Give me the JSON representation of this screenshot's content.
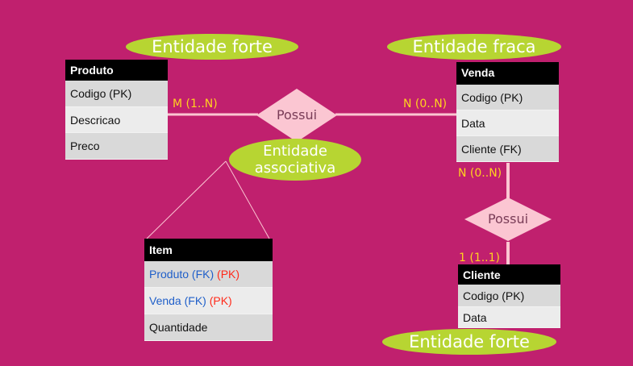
{
  "produto": {
    "title": "Produto",
    "rows": [
      "Codigo (PK)",
      "Descricao",
      "Preco"
    ]
  },
  "venda": {
    "title": "Venda",
    "rows": [
      "Codigo (PK)",
      "Data",
      "Cliente (FK)"
    ]
  },
  "item": {
    "title": "Item",
    "row1_field": "Produto (FK)",
    "row1_key": " (PK)",
    "row2_field": "Venda (FK)",
    "row2_key": " (PK)",
    "row3": "Quantidade"
  },
  "cliente": {
    "title": "Cliente",
    "rows": [
      "Codigo (PK)",
      "Data"
    ]
  },
  "labels": {
    "produto_type": "Entidade forte",
    "venda_type": "Entidade fraca",
    "associativa_line1": "Entidade",
    "associativa_line2": "associativa",
    "cliente_type": "Entidade forte"
  },
  "relationships": {
    "top": "Possui",
    "right": "Possui"
  },
  "cardinalities": {
    "produto_side": "M (1..N)",
    "venda_side_top": "N (0..N)",
    "venda_side_bottom": "N (0..N)",
    "cliente_side": "1 (1..1)"
  },
  "colors": {
    "background": "#c0206e",
    "ellipse": "#b7d532",
    "diamond": "#fbc6d2",
    "line": "#fbc6d2",
    "cardinality": "#ffd21f",
    "fk_blue": "#1f5fc9",
    "pk_red": "#ff2a1a"
  }
}
